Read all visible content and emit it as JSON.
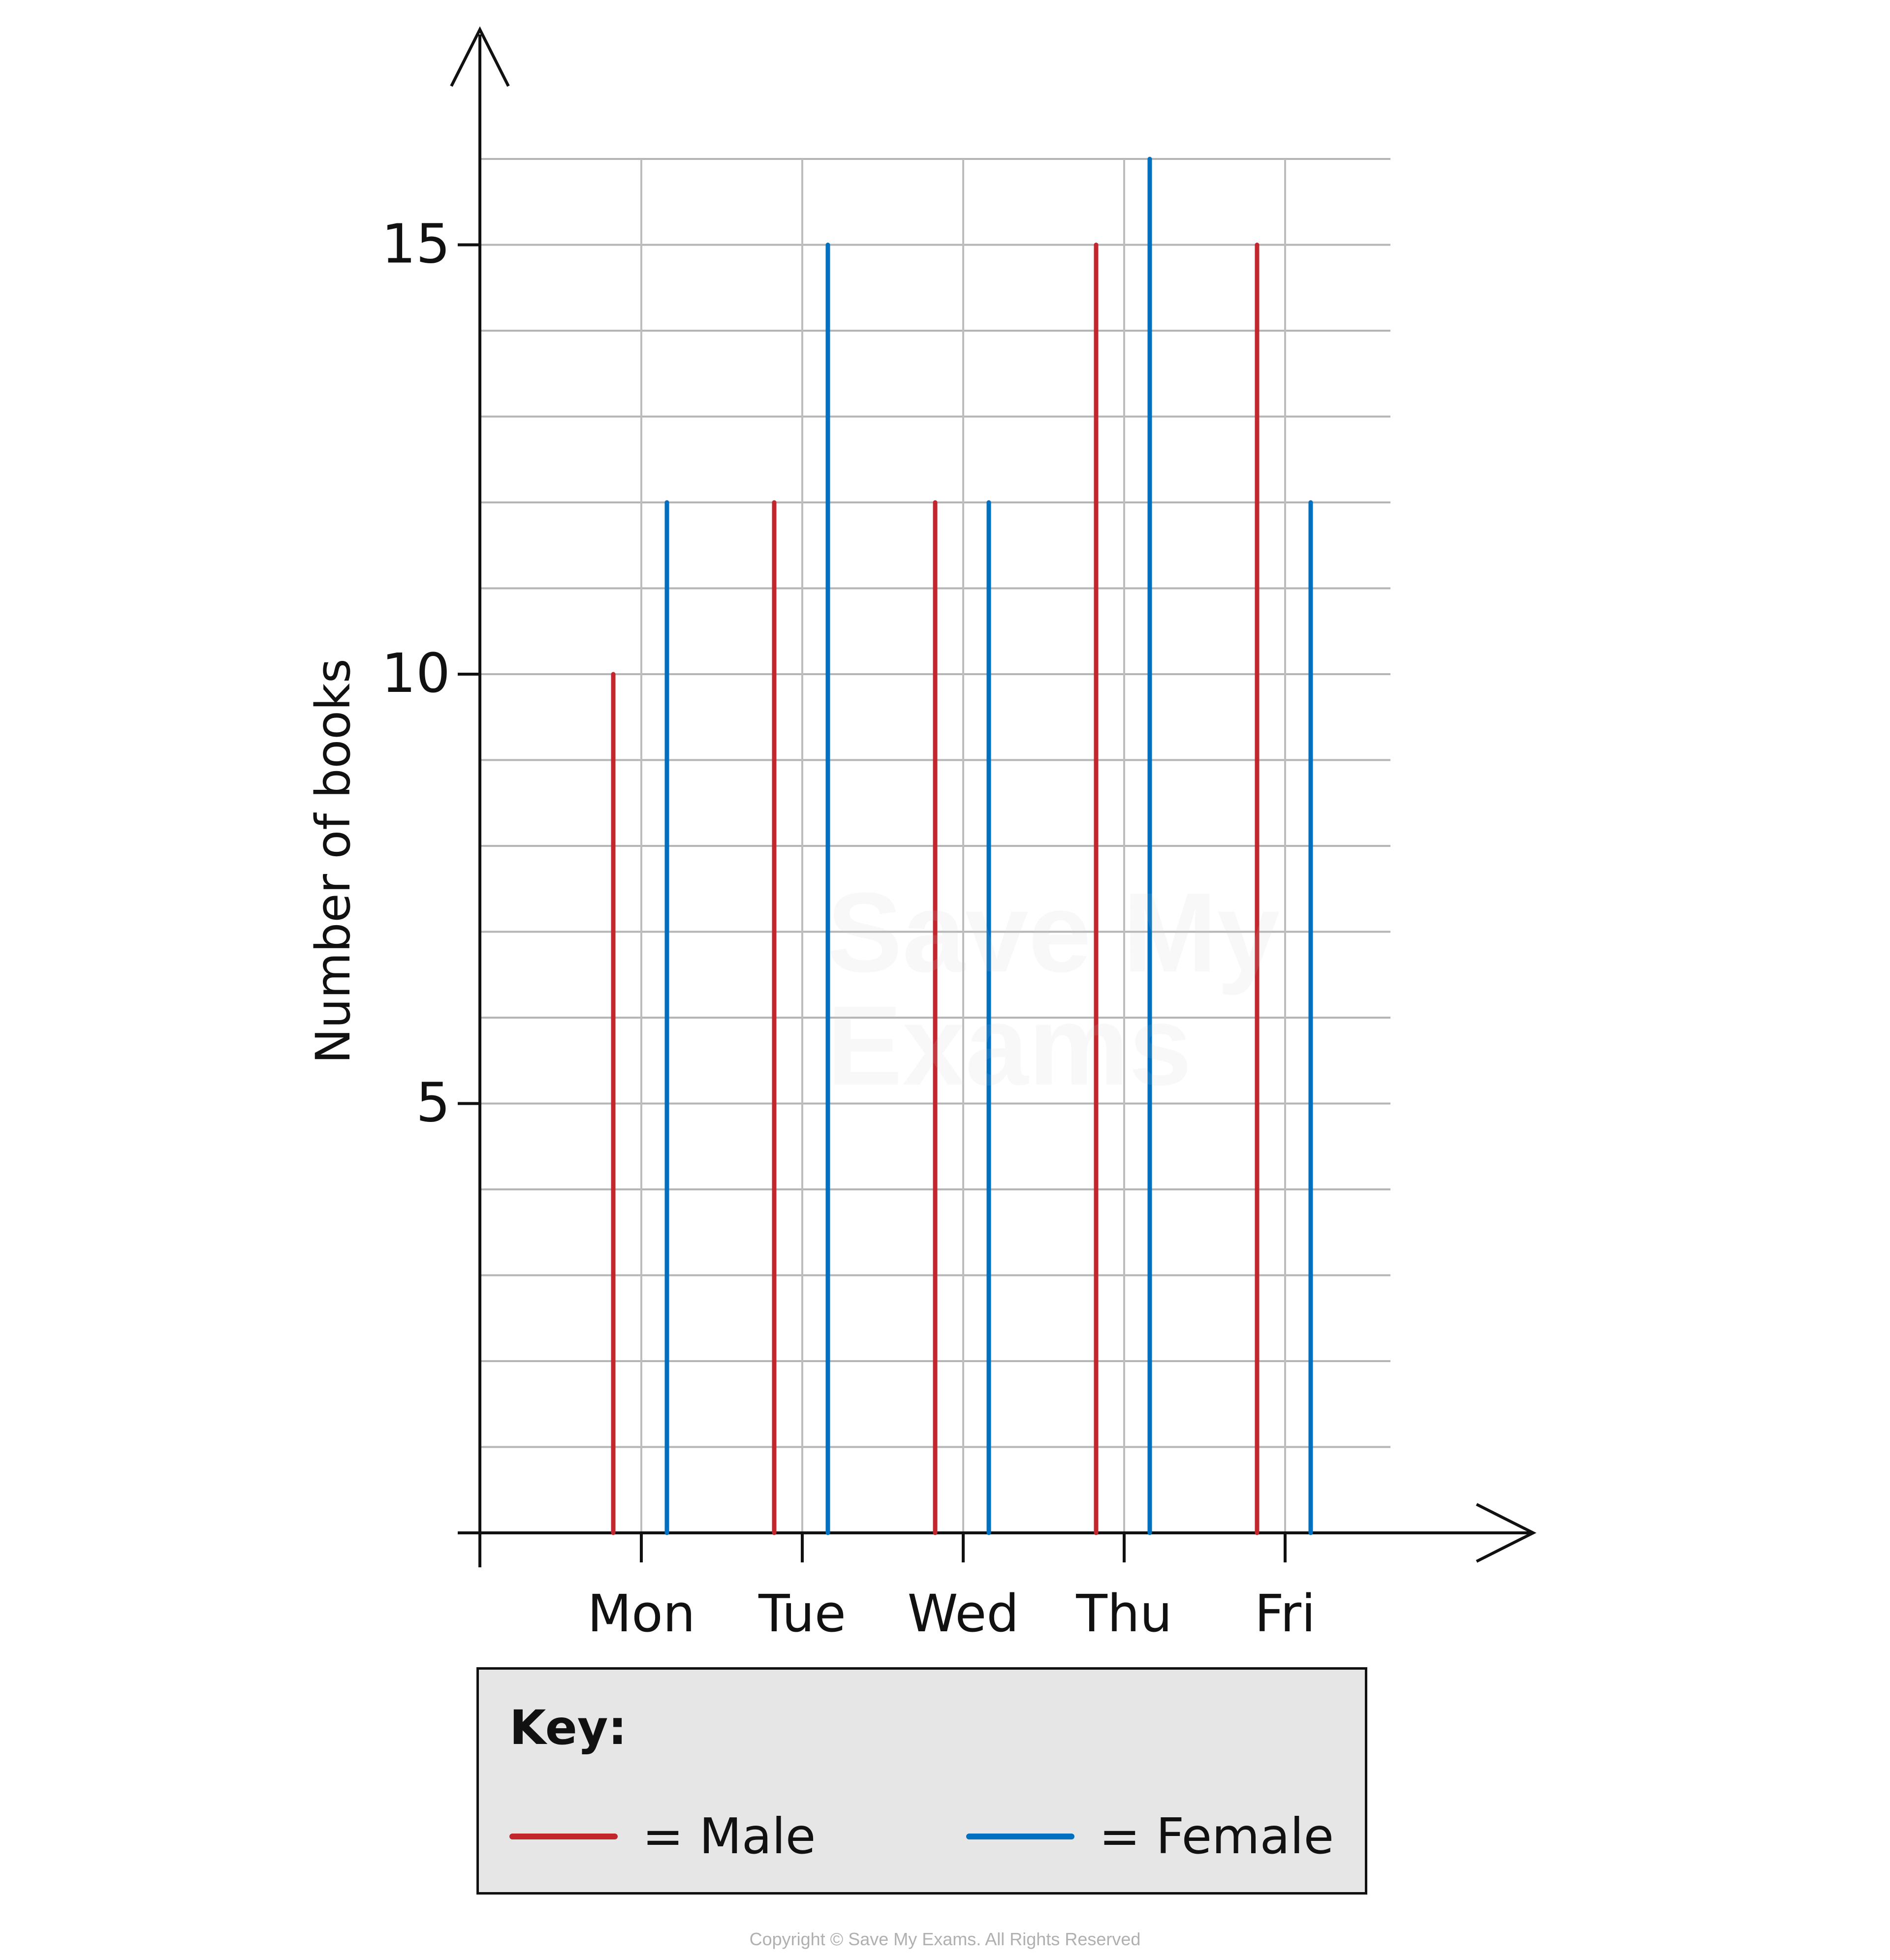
{
  "chart_data": {
    "type": "bar",
    "style": "vertical-line-bars",
    "title": "",
    "xlabel": "",
    "ylabel": "Number of books",
    "categories": [
      "Mon",
      "Tue",
      "Wed",
      "Thu",
      "Fri"
    ],
    "series": [
      {
        "name": "Male",
        "color": "#c1272d",
        "values": [
          10,
          12,
          12,
          15,
          15
        ]
      },
      {
        "name": "Female",
        "color": "#0070c0",
        "values": [
          12,
          15,
          12,
          16,
          12
        ]
      }
    ],
    "yticks": [
      5,
      10,
      15
    ],
    "ylim": [
      0,
      16
    ],
    "grid": true,
    "legend_position": "bottom"
  },
  "axis": {
    "ylabel": "Number of books",
    "yticks": [
      "5",
      "10",
      "15"
    ],
    "xticks": [
      "Mon",
      "Tue",
      "Wed",
      "Thu",
      "Fri"
    ]
  },
  "key": {
    "title": "Key:",
    "items": [
      {
        "label": "= Male",
        "color": "#c1272d"
      },
      {
        "label": "= Female",
        "color": "#0070c0"
      }
    ]
  },
  "watermark": {
    "line1": "Save My",
    "line2": "Exams"
  },
  "copyright": "Copyright © Save My Exams. All Rights Reserved"
}
